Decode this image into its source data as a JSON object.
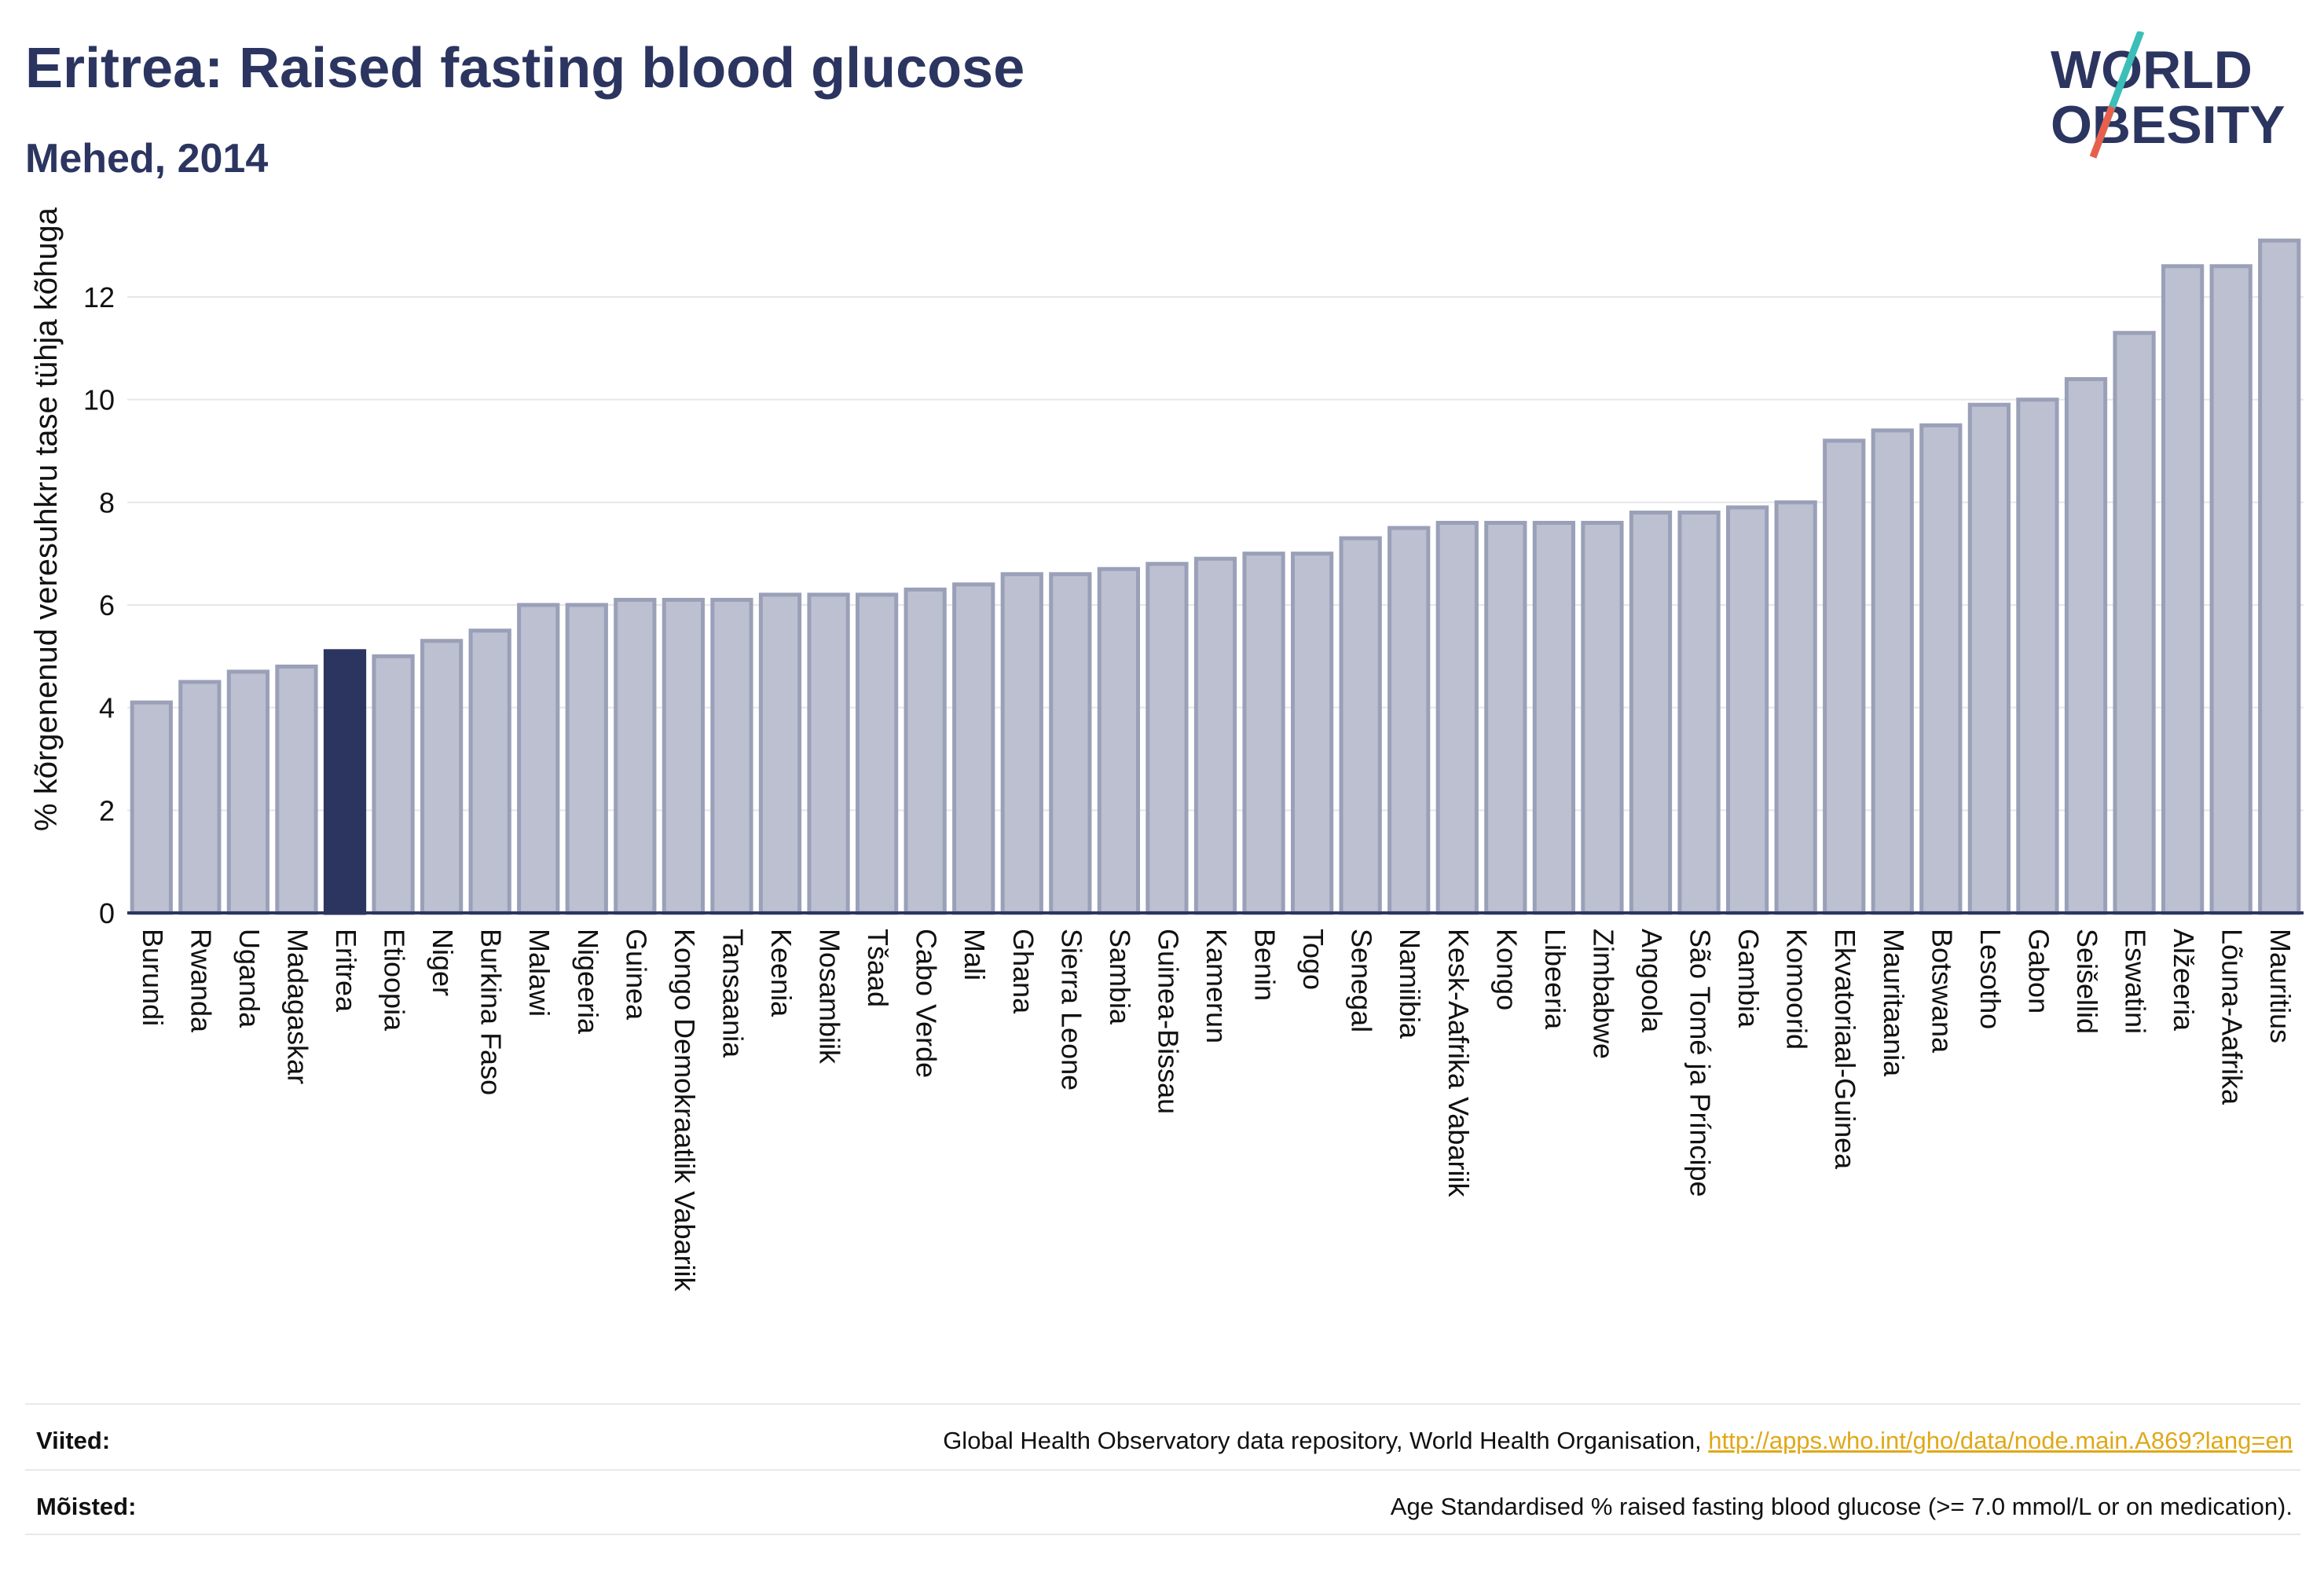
{
  "header": {
    "title": "Eritrea: Raised fasting blood glucose",
    "subtitle": "Mehed, 2014"
  },
  "logo": {
    "line1": "WORLD",
    "line2": "OBESITY"
  },
  "colors": {
    "bar": "#bcc0d0",
    "bar_stroke": "#9aa0b8",
    "highlight": "#2b3560",
    "axis": "#2b3560",
    "grid": "#e6e6ea",
    "text": "#111111",
    "link": "#e0a818",
    "logo_teal": "#3bbfb8",
    "logo_red": "#e8604c"
  },
  "chart_data": {
    "type": "bar",
    "ylabel": "% kõrgenenud veresuhkru tase tühja kõhuga",
    "ylim": [
      0,
      13.5
    ],
    "yticks": [
      0,
      2,
      4,
      6,
      8,
      10,
      12
    ],
    "grid": true,
    "highlight": "Eritrea",
    "categories": [
      "Burundi",
      "Rwanda",
      "Uganda",
      "Madagaskar",
      "Eritrea",
      "Etioopia",
      "Niger",
      "Burkina Faso",
      "Malawi",
      "Nigeeria",
      "Guinea",
      "Kongo Demokraatlik Vabariik",
      "Tansaania",
      "Keenia",
      "Mosambiik",
      "Tšaad",
      "Cabo Verde",
      "Mali",
      "Ghana",
      "Sierra Leone",
      "Sambia",
      "Guinea-Bissau",
      "Kamerun",
      "Benin",
      "Togo",
      "Senegal",
      "Namiibia",
      "Kesk-Aafrika Vabariik",
      "Kongo",
      "Libeeria",
      "Zimbabwe",
      "Angoola",
      "São Tomé ja Príncipe",
      "Gambia",
      "Komoorid",
      "Ekvatoriaal-Guinea",
      "Mauritaania",
      "Botswana",
      "Lesotho",
      "Gabon",
      "Seišellid",
      "Eswatini",
      "Alžeeria",
      "Lõuna-Aafrika",
      "Mauritius"
    ],
    "values": [
      4.1,
      4.5,
      4.7,
      4.8,
      5.1,
      5.0,
      5.3,
      5.5,
      6.0,
      6.0,
      6.1,
      6.1,
      6.1,
      6.2,
      6.2,
      6.2,
      6.3,
      6.4,
      6.6,
      6.6,
      6.7,
      6.8,
      6.9,
      7.0,
      7.0,
      7.3,
      7.5,
      7.6,
      7.6,
      7.6,
      7.6,
      7.8,
      7.8,
      7.9,
      8.0,
      9.2,
      9.4,
      9.5,
      9.9,
      10.0,
      10.4,
      11.3,
      12.6,
      12.6,
      13.1
    ]
  },
  "footer": {
    "refs_label": "Viited:",
    "refs_text": "Global Health Observatory data repository, World Health Organisation, ",
    "refs_link": "http://apps.who.int/gho/data/node.main.A869?lang=en",
    "defs_label": "Mõisted:",
    "defs_text": "Age Standardised % raised fasting blood glucose (>= 7.0 mmol/L or on medication)."
  }
}
